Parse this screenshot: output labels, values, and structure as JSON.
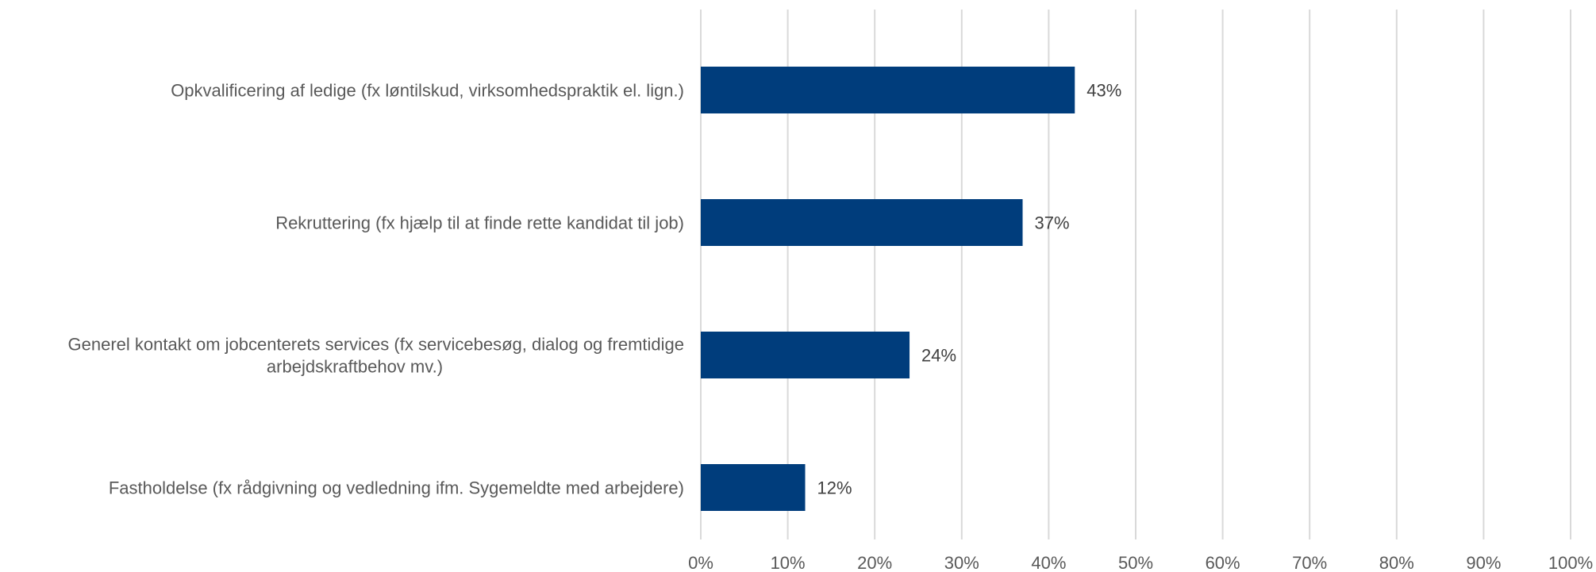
{
  "chart_data": {
    "type": "bar",
    "orientation": "horizontal",
    "title": "",
    "xlabel": "",
    "ylabel": "",
    "categories": [
      [
        "Opkvalificering af ledige (fx løntilskud, virksomhedspraktik el. lign.)"
      ],
      [
        "Rekruttering (fx hjælp til at finde rette kandidat til job)"
      ],
      [
        "Generel kontakt om jobcenterets services (fx servicebesøg, dialog og fremtidige",
        "arbejdskraftbehov mv.)"
      ],
      [
        "Fastholdelse (fx rådgivning og vedledning ifm. Sygemeldte med arbejdere)"
      ]
    ],
    "values": [
      43,
      37,
      24,
      12
    ],
    "data_labels": [
      "43%",
      "37%",
      "24%",
      "12%"
    ],
    "xlim": [
      0,
      100
    ],
    "x_ticks": [
      0,
      10,
      20,
      30,
      40,
      50,
      60,
      70,
      80,
      90,
      100
    ],
    "x_tick_labels": [
      "0%",
      "10%",
      "20%",
      "30%",
      "40%",
      "50%",
      "60%",
      "70%",
      "80%",
      "90%",
      "100%"
    ],
    "grid": true,
    "legend": "none",
    "bar_color": "#003d7c",
    "grid_color": "#d9d9d9",
    "label_color": "#595959",
    "data_label_color": "#404040"
  }
}
